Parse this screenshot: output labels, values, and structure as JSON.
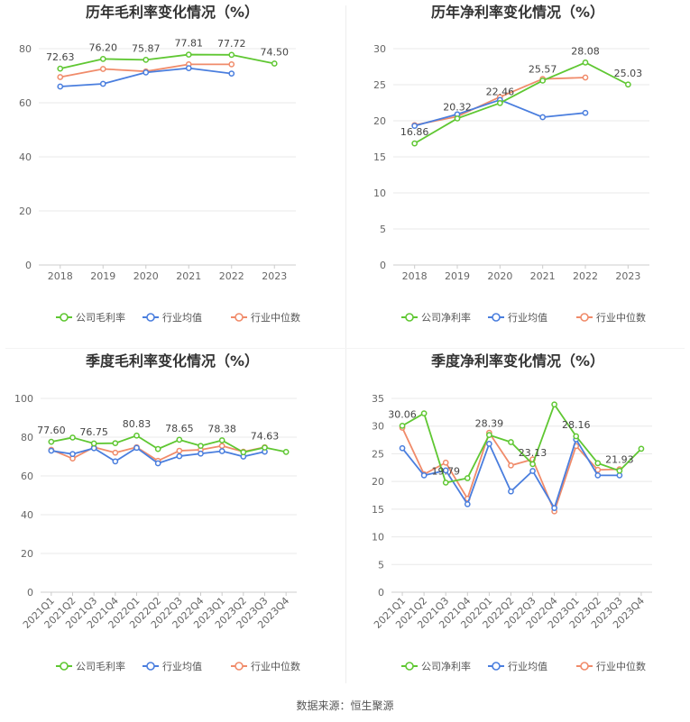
{
  "colors": {
    "company": "#5fc732",
    "avg": "#4a7ede",
    "median": "#f08b6a",
    "grid": "#e8e8e8",
    "axis": "#cccccc"
  },
  "legend": {
    "annual_gross": [
      "公司毛利率",
      "行业均值",
      "行业中位数"
    ],
    "annual_net": [
      "公司净利率",
      "行业均值",
      "行业中位数"
    ],
    "quarterly_gross": [
      "公司毛利率",
      "行业均值",
      "行业中位数"
    ],
    "quarterly_net": [
      "公司净利率",
      "行业均值",
      "行业中位数"
    ]
  },
  "footer": {
    "source": "数据来源：恒生聚源"
  },
  "chart_data": [
    {
      "id": "annual_gross",
      "type": "line",
      "title": "历年毛利率变化情况（%）",
      "categories": [
        "2018",
        "2019",
        "2020",
        "2021",
        "2022",
        "2023"
      ],
      "ylim": [
        0,
        80
      ],
      "yticks": [
        0,
        20,
        40,
        60,
        80
      ],
      "series": [
        {
          "name": "公司毛利率",
          "values": [
            72.63,
            76.2,
            75.87,
            77.81,
            77.72,
            74.5
          ]
        },
        {
          "name": "行业均值",
          "values": [
            66.0,
            67.0,
            71.2,
            72.8,
            70.8,
            null
          ]
        },
        {
          "name": "行业中位数",
          "values": [
            69.5,
            72.5,
            71.6,
            74.2,
            74.2,
            null
          ]
        }
      ],
      "data_labels": [
        "72.63",
        "76.20",
        "75.87",
        "77.81",
        "77.72",
        "74.50"
      ]
    },
    {
      "id": "annual_net",
      "type": "line",
      "title": "历年净利率变化情况（%）",
      "categories": [
        "2018",
        "2019",
        "2020",
        "2021",
        "2022",
        "2023"
      ],
      "ylim": [
        0,
        30
      ],
      "yticks": [
        0,
        5,
        10,
        15,
        20,
        25,
        30
      ],
      "series": [
        {
          "name": "公司净利率",
          "values": [
            16.86,
            20.32,
            22.46,
            25.57,
            28.08,
            25.03
          ]
        },
        {
          "name": "行业均值",
          "values": [
            19.3,
            20.9,
            22.9,
            20.5,
            21.1,
            null
          ]
        },
        {
          "name": "行业中位数",
          "values": [
            19.4,
            20.6,
            23.3,
            25.8,
            26.0,
            null
          ]
        }
      ],
      "data_labels": [
        "16.86",
        "20.32",
        "22.46",
        "25.57",
        "28.08",
        "25.03"
      ]
    },
    {
      "id": "quarterly_gross",
      "type": "line",
      "title": "季度毛利率变化情况（%）",
      "categories": [
        "2021Q1",
        "2021Q2",
        "2021Q3",
        "2021Q4",
        "2022Q1",
        "2022Q2",
        "2022Q3",
        "2022Q4",
        "2023Q1",
        "2023Q2",
        "2023Q3",
        "2023Q4"
      ],
      "ylim": [
        0,
        100
      ],
      "yticks": [
        0,
        20,
        40,
        60,
        80,
        100
      ],
      "series": [
        {
          "name": "公司毛利率",
          "values": [
            77.6,
            79.8,
            76.75,
            76.9,
            80.83,
            73.9,
            78.65,
            75.5,
            78.38,
            72.2,
            74.63,
            72.4
          ]
        },
        {
          "name": "行业均值",
          "values": [
            73.0,
            71.3,
            74.3,
            67.5,
            74.5,
            66.5,
            70.2,
            71.5,
            72.8,
            70.0,
            72.5,
            null
          ]
        },
        {
          "name": "行业中位数",
          "values": [
            73.5,
            69.0,
            74.8,
            72.0,
            74.8,
            67.8,
            73.0,
            73.5,
            75.5,
            72.5,
            74.8,
            null
          ]
        }
      ],
      "data_labels": [
        "77.60",
        "",
        "76.75",
        "",
        "80.83",
        "",
        "78.65",
        "",
        "78.38",
        "",
        "74.63",
        ""
      ]
    },
    {
      "id": "quarterly_net",
      "type": "line",
      "title": "季度净利率变化情况（%）",
      "categories": [
        "2021Q1",
        "2021Q2",
        "2021Q3",
        "2021Q4",
        "2022Q1",
        "2022Q2",
        "2022Q3",
        "2022Q4",
        "2023Q1",
        "2023Q2",
        "2023Q3",
        "2023Q4"
      ],
      "ylim": [
        0,
        35
      ],
      "yticks": [
        0,
        5,
        10,
        15,
        20,
        25,
        30,
        35
      ],
      "series": [
        {
          "name": "公司净利率",
          "values": [
            30.06,
            32.3,
            19.79,
            20.6,
            28.39,
            27.1,
            23.13,
            33.9,
            28.16,
            23.3,
            21.93,
            25.9
          ]
        },
        {
          "name": "行业均值",
          "values": [
            26.0,
            21.1,
            22.0,
            15.9,
            26.8,
            18.2,
            21.9,
            15.2,
            27.6,
            21.1,
            21.1,
            null
          ]
        },
        {
          "name": "行业中位数",
          "values": [
            29.7,
            21.3,
            23.4,
            16.9,
            28.8,
            22.9,
            24.0,
            14.6,
            26.4,
            22.1,
            22.2,
            null
          ]
        }
      ],
      "data_labels": [
        "30.06",
        "",
        "19.79",
        "",
        "28.39",
        "",
        "23.13",
        "",
        "28.16",
        "",
        "21.93",
        ""
      ]
    }
  ]
}
